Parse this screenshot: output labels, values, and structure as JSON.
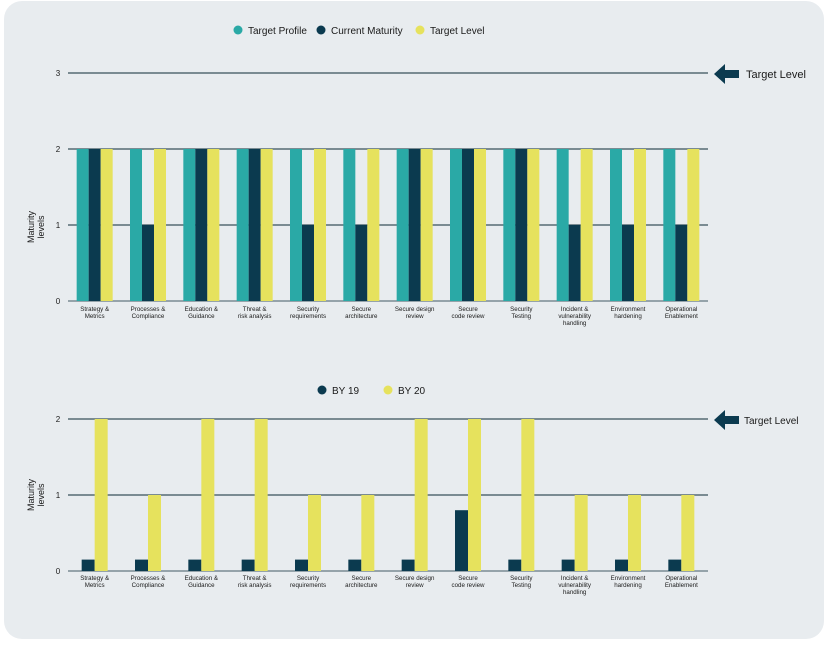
{
  "colors": {
    "background": "#e8ecef",
    "teal": "#2aa9a6",
    "navy": "#0b3a4f",
    "yellow": "#e6e25d"
  },
  "chart_data": [
    {
      "type": "bar",
      "categories": [
        "Strategy &\nMetrics",
        "Processes &\nCompliance",
        "Education &\nGuidance",
        "Threat &\nrisk analysis",
        "Security\nrequirements",
        "Secure\narchitecture",
        "Secure design\nreview",
        "Secure\ncode review",
        "Security\nTesting",
        "Incident &\nvulnerability\nhandling",
        "Environment\nhardening",
        "Operational\nEnablement"
      ],
      "series": [
        {
          "name": "Target Profile",
          "values": [
            2,
            2,
            2,
            2,
            2,
            2,
            2,
            2,
            2,
            2,
            2,
            2
          ]
        },
        {
          "name": "Current Maturity",
          "values": [
            2,
            1,
            2,
            2,
            1,
            1,
            2,
            2,
            2,
            1,
            1,
            1
          ]
        },
        {
          "name": "Target Level",
          "values": [
            2,
            2,
            2,
            2,
            2,
            2,
            2,
            2,
            2,
            2,
            2,
            2
          ]
        }
      ],
      "ylabel": "Maturity\nlevels",
      "yticks": [
        0,
        1,
        2,
        3
      ],
      "ylim": [
        0,
        3
      ],
      "grid": true,
      "legend": "top",
      "annotation": "Target Level"
    },
    {
      "type": "bar",
      "categories": [
        "Strategy &\nMetrics",
        "Processes &\nCompliance",
        "Education &\nGuidance",
        "Threat &\nrisk analysis",
        "Security\nrequirements",
        "Secure\narchitecture",
        "Secure design\nreview",
        "Secure\ncode review",
        "Security\nTesting",
        "Incident &\nvulnerability\nhandling",
        "Environment\nhardening",
        "Operational\nEnablement"
      ],
      "series": [
        {
          "name": "BY 19",
          "values": [
            0.15,
            0.15,
            0.15,
            0.15,
            0.15,
            0.15,
            0.15,
            0.8,
            0.15,
            0.15,
            0.15,
            0.15
          ]
        },
        {
          "name": "BY 20",
          "values": [
            2,
            1,
            2,
            2,
            1,
            1,
            2,
            2,
            2,
            1,
            1,
            1
          ]
        }
      ],
      "ylabel": "Maturity\nlevels",
      "yticks": [
        0,
        1,
        2
      ],
      "ylim": [
        0,
        2
      ],
      "grid": true,
      "legend": "top",
      "annotation": "Target Level"
    }
  ]
}
